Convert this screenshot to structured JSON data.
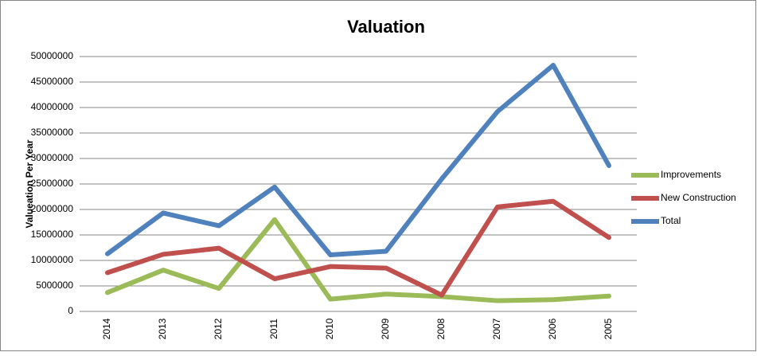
{
  "chart_data": {
    "type": "line",
    "title": "Valuation",
    "y_label": "Valueation Per Year",
    "categories": [
      "2014",
      "2013",
      "2012",
      "2011",
      "2010",
      "2009",
      "2008",
      "2007",
      "2006",
      "2005"
    ],
    "series": [
      {
        "name": "Improvements",
        "color": "#9bbb59",
        "values": [
          3700000,
          8100000,
          4500000,
          18000000,
          2400000,
          3400000,
          2900000,
          2100000,
          2300000,
          3000000
        ]
      },
      {
        "name": "New Construction",
        "color": "#c0504d",
        "values": [
          7600000,
          11200000,
          12400000,
          6400000,
          8800000,
          8500000,
          3200000,
          20500000,
          21600000,
          14500000
        ]
      },
      {
        "name": "Total",
        "color": "#4f81bd",
        "values": [
          11300000,
          19300000,
          16800000,
          24400000,
          11100000,
          11800000,
          26000000,
          39200000,
          48300000,
          28600000
        ]
      }
    ],
    "ylim": [
      0,
      50000000
    ],
    "yticks": [
      0,
      5000000,
      10000000,
      15000000,
      20000000,
      25000000,
      30000000,
      35000000,
      40000000,
      45000000,
      50000000
    ],
    "grid": true,
    "legend": "right"
  }
}
